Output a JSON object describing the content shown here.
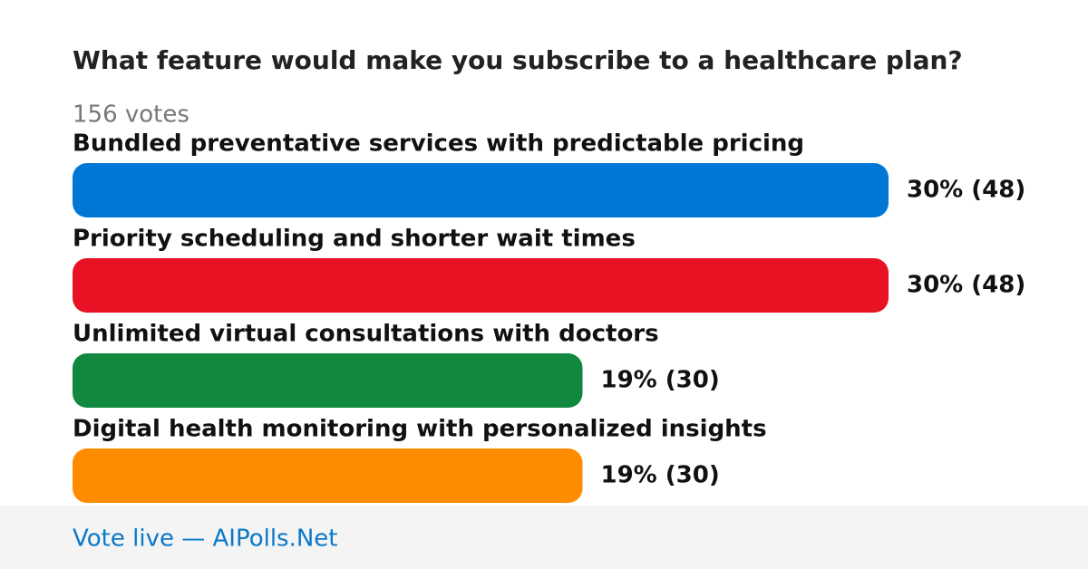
{
  "chart_data": {
    "type": "bar",
    "orientation": "horizontal",
    "title": "What feature would make you subscribe to a healthcare plan?",
    "subtitle": "156 votes",
    "categories": [
      "Bundled preventative services with predictable pricing",
      "Priority scheduling and shorter wait times",
      "Unlimited virtual consultations with doctors",
      "Digital health monitoring with personalized insights"
    ],
    "values": [
      48,
      48,
      30,
      30
    ],
    "value_labels": [
      "30% (48)",
      "30% (48)",
      "19% (30)",
      "19% (30)"
    ],
    "colors": [
      "#0077d4",
      "#e81224",
      "#10893e",
      "#ff8c00"
    ],
    "footer": "Vote live — AIPolls.Net"
  }
}
